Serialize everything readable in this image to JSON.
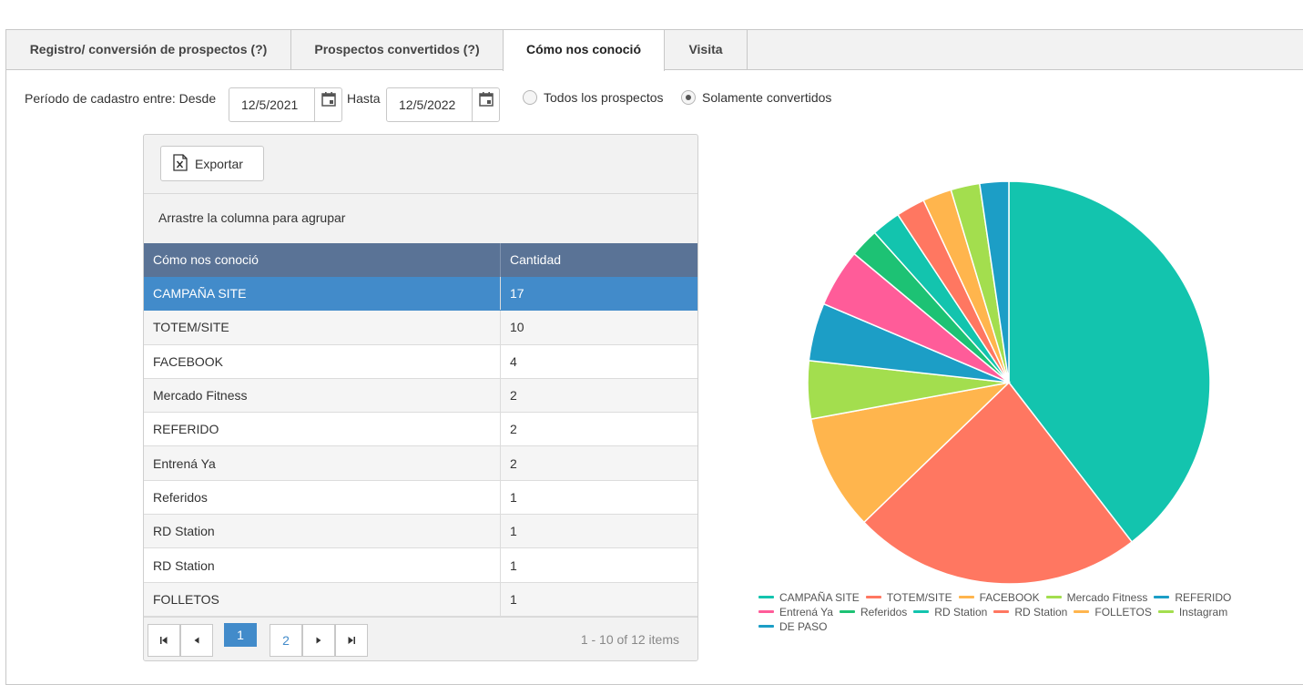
{
  "tabs": [
    {
      "label": "Registro/ conversión de prospectos (?)",
      "active": false
    },
    {
      "label": "Prospectos convertidos (?)",
      "active": false
    },
    {
      "label": "Cómo nos conoció",
      "active": true
    },
    {
      "label": "Visita",
      "active": false
    }
  ],
  "filters": {
    "period_label": "Período de cadastro entre: Desde",
    "from_date": "12/5/2021",
    "until_label": "Hasta",
    "to_date": "12/5/2022",
    "radio_all": "Todos los prospectos",
    "radio_converted": "Solamente convertidos",
    "selected_radio": "converted"
  },
  "grid": {
    "export_label": "Exportar",
    "group_hint": "Arrastre la columna para agrupar",
    "columns": [
      "Cómo nos conoció",
      "Cantidad"
    ],
    "rows": [
      [
        "CAMPAÑA SITE",
        "17"
      ],
      [
        "TOTEM/SITE",
        "10"
      ],
      [
        "FACEBOOK",
        "4"
      ],
      [
        "Mercado Fitness",
        "2"
      ],
      [
        "REFERIDO",
        "2"
      ],
      [
        "Entrená Ya",
        "2"
      ],
      [
        "Referidos",
        "1"
      ],
      [
        "RD Station",
        "1"
      ],
      [
        "RD Station",
        "1"
      ],
      [
        "FOLLETOS",
        "1"
      ]
    ],
    "selected_row": 0,
    "pager": {
      "pages": [
        "1",
        "2"
      ],
      "current_page": "1",
      "info": "1 - 10 of 12 items"
    }
  },
  "chart_data": {
    "type": "pie",
    "categories": [
      "CAMPAÑA SITE",
      "TOTEM/SITE",
      "FACEBOOK",
      "Mercado Fitness",
      "REFERIDO",
      "Entrená Ya",
      "Referidos",
      "RD Station",
      "RD Station",
      "FOLLETOS",
      "Instagram",
      "DE PASO"
    ],
    "values": [
      17,
      10,
      4,
      2,
      2,
      2,
      1,
      1,
      1,
      1,
      1,
      1
    ],
    "colors": [
      "#13c4ae",
      "#ff7761",
      "#ffb54d",
      "#a3de4e",
      "#1c9ec6",
      "#ff5c99",
      "#1dc274",
      "#13c4ae",
      "#ff7761",
      "#ffb54d",
      "#a3de4e",
      "#1c9ec6"
    ],
    "legend_position": "bottom"
  }
}
